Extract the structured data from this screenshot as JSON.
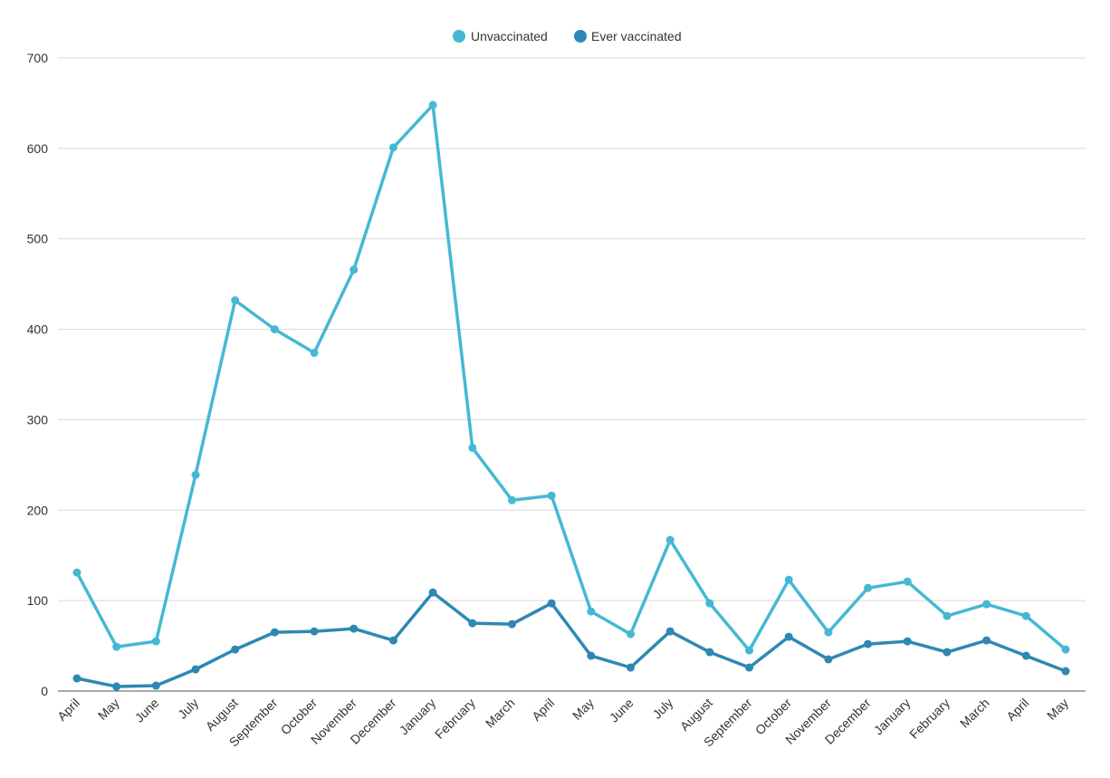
{
  "chart_data": {
    "type": "line",
    "title": "",
    "xlabel": "",
    "ylabel": "",
    "ylim": [
      0,
      700
    ],
    "yticks": [
      0,
      100,
      200,
      300,
      400,
      500,
      600,
      700
    ],
    "grid": true,
    "legend_position": "top-center",
    "categories": [
      "April",
      "May",
      "June",
      "July",
      "August",
      "September",
      "October",
      "November",
      "December",
      "January",
      "February",
      "March",
      "April",
      "May",
      "June",
      "July",
      "August",
      "September",
      "October",
      "November",
      "December",
      "January",
      "February",
      "March",
      "April",
      "May"
    ],
    "series": [
      {
        "name": "Unvaccinated",
        "color": "#45b8d4",
        "values": [
          131,
          49,
          55,
          239,
          432,
          400,
          374,
          466,
          601,
          648,
          269,
          211,
          216,
          88,
          63,
          167,
          97,
          45,
          123,
          65,
          114,
          121,
          83,
          96,
          83,
          46
        ]
      },
      {
        "name": "Ever vaccinated",
        "color": "#2e88b3",
        "values": [
          14,
          5,
          6,
          24,
          46,
          65,
          66,
          69,
          56,
          109,
          75,
          74,
          97,
          39,
          26,
          66,
          43,
          26,
          60,
          35,
          52,
          55,
          43,
          56,
          39,
          22
        ]
      }
    ]
  }
}
